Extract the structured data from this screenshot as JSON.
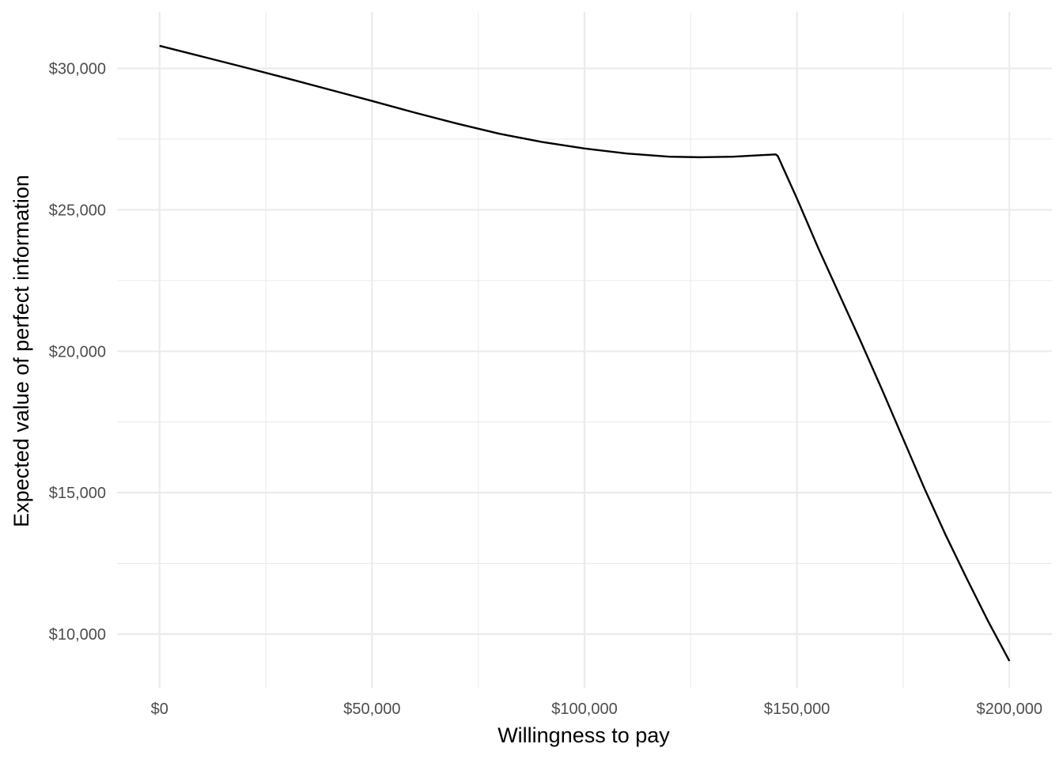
{
  "chart_data": {
    "type": "line",
    "title": "",
    "xlabel": "Willingness to pay",
    "ylabel": "Expected value of perfect information",
    "xlim": [
      -10000,
      210000
    ],
    "ylim": [
      8100,
      32000
    ],
    "grid": true,
    "legend": "none",
    "x_ticks": [
      {
        "value": 0,
        "label": "$0"
      },
      {
        "value": 50000,
        "label": "$50,000"
      },
      {
        "value": 100000,
        "label": "$100,000"
      },
      {
        "value": 150000,
        "label": "$150,000"
      },
      {
        "value": 200000,
        "label": "$200,000"
      }
    ],
    "y_ticks": [
      {
        "value": 10000,
        "label": "$10,000"
      },
      {
        "value": 15000,
        "label": "$15,000"
      },
      {
        "value": 20000,
        "label": "$20,000"
      },
      {
        "value": 25000,
        "label": "$25,000"
      },
      {
        "value": 30000,
        "label": "$30,000"
      }
    ],
    "x_minor": [
      25000,
      75000,
      125000,
      175000
    ],
    "y_minor": [
      12500,
      17500,
      22500,
      27500
    ],
    "line_color": "#000000",
    "grid_color": "#ebebeb",
    "series": [
      {
        "x": [
          0,
          10000,
          20000,
          30000,
          40000,
          50000,
          60000,
          70000,
          80000,
          90000,
          100000,
          110000,
          120000,
          127000,
          135000,
          140000,
          145000,
          145500,
          150000,
          155000,
          160000,
          165000,
          170000,
          175000,
          180000,
          185000,
          190000,
          195000,
          200000
        ],
        "y": [
          30800,
          30420,
          30040,
          29650,
          29250,
          28850,
          28440,
          28050,
          27690,
          27400,
          27170,
          26990,
          26880,
          26860,
          26880,
          26920,
          26960,
          26900,
          25400,
          23650,
          22000,
          20350,
          18650,
          16900,
          15150,
          13500,
          11950,
          10450,
          9050
        ]
      }
    ]
  }
}
